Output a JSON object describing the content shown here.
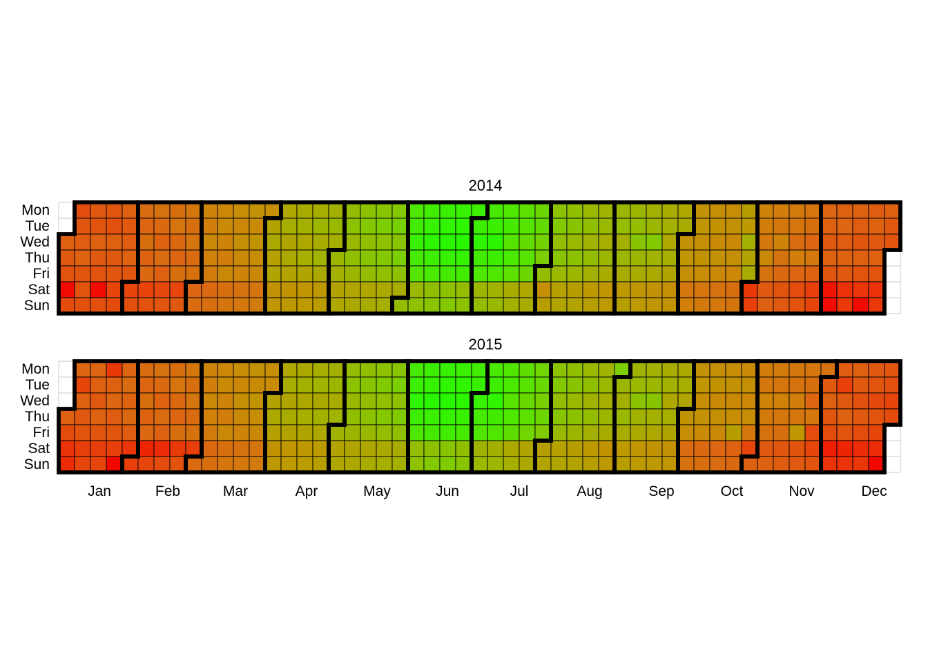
{
  "chart_data": {
    "type": "heatmap",
    "subtype": "calendar-heatmap",
    "legend": "none",
    "grid_on": true,
    "weekday_labels": [
      "Mon",
      "Tue",
      "Wed",
      "Thu",
      "Fri",
      "Sat",
      "Sun"
    ],
    "month_labels": [
      "Jan",
      "Feb",
      "Mar",
      "Apr",
      "May",
      "Jun",
      "Jul",
      "Aug",
      "Sep",
      "Oct",
      "Nov",
      "Dec"
    ],
    "text_color": "#000000",
    "grid_line_color": "#000000",
    "hairline_color": "#c8c8c8",
    "month_border_color": "#000000",
    "value_scale": {
      "min": 0,
      "max": 100,
      "low_color": "#F40000",
      "mid_color": "#BC9A00",
      "high_color": "#1FFA00",
      "stops": [
        [
          0,
          "#F40000"
        ],
        [
          10,
          "#EE2505"
        ],
        [
          20,
          "#E6460C"
        ],
        [
          30,
          "#DC6612"
        ],
        [
          40,
          "#CE8409"
        ],
        [
          50,
          "#BC9A00"
        ],
        [
          60,
          "#A4B000"
        ],
        [
          70,
          "#7CCE00"
        ],
        [
          80,
          "#54E400"
        ],
        [
          90,
          "#30F400"
        ],
        [
          100,
          "#1FFA00"
        ]
      ]
    },
    "years": [
      {
        "title": "2014",
        "first_weekday": "Wed",
        "months": [
          [
            28,
            26,
            24,
            3,
            22,
            22,
            25,
            27,
            29,
            25,
            24,
            23,
            26,
            24,
            28,
            26,
            24,
            3,
            23,
            25,
            23,
            28,
            26,
            25,
            20,
            22,
            28,
            26,
            27,
            29,
            25
          ],
          [
            20,
            23,
            32,
            30,
            33,
            29,
            31,
            19,
            24,
            34,
            31,
            29,
            32,
            28,
            21,
            25,
            33,
            35,
            31,
            30,
            33,
            20,
            26,
            36,
            33,
            35,
            32,
            34
          ],
          [
            30,
            32,
            40,
            38,
            42,
            39,
            37,
            31,
            33,
            41,
            43,
            40,
            38,
            42,
            33,
            35,
            44,
            41,
            45,
            42,
            40,
            34,
            36,
            46,
            43,
            47,
            44,
            42,
            35,
            37,
            45
          ],
          [
            54,
            57,
            53,
            55,
            46,
            48,
            56,
            59,
            55,
            57,
            54,
            47,
            49,
            58,
            60,
            56,
            59,
            55,
            48,
            50,
            59,
            62,
            58,
            61,
            57,
            49,
            51,
            60,
            63,
            59
          ],
          [
            62,
            60,
            54,
            56,
            64,
            66,
            63,
            65,
            62,
            55,
            57,
            66,
            68,
            65,
            67,
            64,
            56,
            58,
            67,
            70,
            66,
            68,
            65,
            57,
            59,
            68,
            71,
            67,
            70,
            66,
            58
          ],
          [
            64,
            82,
            85,
            88,
            84,
            80,
            63,
            66,
            85,
            88,
            92,
            86,
            83,
            65,
            67,
            87,
            90,
            94,
            88,
            84,
            66,
            68,
            88,
            91,
            95,
            89,
            85,
            64,
            66,
            86
          ],
          [
            86,
            90,
            85,
            82,
            62,
            64,
            84,
            87,
            92,
            86,
            82,
            61,
            63,
            82,
            84,
            80,
            83,
            78,
            58,
            60,
            78,
            80,
            76,
            79,
            74,
            56,
            58,
            74,
            76,
            72,
            70
          ],
          [
            64,
            45,
            52,
            66,
            68,
            64,
            67,
            63,
            53,
            55,
            65,
            67,
            63,
            66,
            62,
            52,
            54,
            63,
            65,
            61,
            64,
            60,
            50,
            52,
            61,
            63,
            59,
            62,
            58,
            48,
            50
          ],
          [
            62,
            64,
            60,
            62,
            58,
            50,
            52,
            62,
            64,
            67,
            62,
            58,
            48,
            50,
            60,
            62,
            68,
            61,
            57,
            46,
            48,
            58,
            60,
            56,
            59,
            55,
            45,
            47,
            56,
            58
          ],
          [
            46,
            48,
            45,
            36,
            38,
            46,
            48,
            45,
            47,
            44,
            35,
            37,
            45,
            47,
            43,
            46,
            42,
            34,
            36,
            44,
            46,
            42,
            45,
            41,
            33,
            35,
            52,
            50,
            60,
            54,
            58
          ],
          [
            16,
            18,
            40,
            38,
            36,
            42,
            34,
            26,
            28,
            38,
            36,
            40,
            34,
            31,
            24,
            26,
            37,
            35,
            32,
            38,
            30,
            22,
            24,
            35,
            33,
            30,
            36,
            28,
            18,
            20
          ],
          [
            30,
            28,
            26,
            29,
            25,
            5,
            3,
            28,
            30,
            27,
            29,
            26,
            14,
            16,
            29,
            27,
            25,
            28,
            24,
            15,
            3,
            27,
            29,
            26,
            28,
            24,
            14,
            16,
            28,
            26,
            24
          ]
        ]
      },
      {
        "title": "2015",
        "first_weekday": "Thu",
        "months": [
          [
            28,
            22,
            14,
            12,
            30,
            20,
            28,
            26,
            24,
            18,
            20,
            30,
            28,
            26,
            29,
            25,
            18,
            20,
            16,
            28,
            30,
            27,
            25,
            18,
            2,
            30,
            32,
            29,
            31,
            27,
            15
          ],
          [
            18,
            32,
            30,
            33,
            29,
            31,
            10,
            20,
            34,
            31,
            29,
            32,
            28,
            12,
            22,
            33,
            35,
            31,
            30,
            33,
            16,
            24,
            36,
            33,
            35,
            32,
            34,
            18
          ],
          [
            32,
            40,
            38,
            42,
            39,
            37,
            31,
            33,
            41,
            43,
            40,
            38,
            42,
            33,
            35,
            44,
            41,
            45,
            42,
            40,
            34,
            36,
            46,
            43,
            47,
            44,
            42,
            35,
            37,
            45,
            43
          ],
          [
            54,
            57,
            53,
            47,
            49,
            56,
            59,
            55,
            58,
            54,
            48,
            50,
            57,
            60,
            56,
            59,
            55,
            49,
            51,
            59,
            61,
            57,
            60,
            56,
            50,
            52,
            60,
            62,
            58,
            61
          ],
          [
            61,
            54,
            56,
            64,
            66,
            63,
            65,
            62,
            55,
            57,
            65,
            67,
            64,
            66,
            63,
            56,
            58,
            66,
            69,
            65,
            68,
            64,
            57,
            59,
            67,
            70,
            66,
            69,
            65,
            58,
            60
          ],
          [
            84,
            87,
            91,
            86,
            82,
            64,
            66,
            86,
            89,
            93,
            87,
            84,
            66,
            68,
            88,
            91,
            95,
            89,
            85,
            67,
            69,
            87,
            90,
            93,
            88,
            84,
            65,
            67,
            85,
            88
          ],
          [
            88,
            84,
            81,
            61,
            63,
            83,
            86,
            90,
            85,
            81,
            60,
            62,
            81,
            83,
            79,
            82,
            77,
            57,
            59,
            77,
            79,
            75,
            78,
            73,
            55,
            57,
            73,
            75,
            71,
            74,
            69
          ],
          [
            52,
            54,
            66,
            68,
            64,
            67,
            63,
            53,
            55,
            65,
            67,
            63,
            66,
            62,
            52,
            54,
            63,
            65,
            61,
            64,
            60,
            50,
            52,
            61,
            63,
            59,
            62,
            58,
            47,
            49,
            70
          ],
          [
            62,
            60,
            63,
            58,
            50,
            52,
            61,
            63,
            66,
            61,
            57,
            48,
            50,
            60,
            62,
            67,
            60,
            56,
            47,
            49,
            58,
            60,
            56,
            59,
            55,
            46,
            48,
            57,
            59,
            55
          ],
          [
            47,
            44,
            32,
            34,
            46,
            48,
            44,
            46,
            43,
            31,
            33,
            45,
            47,
            43,
            45,
            42,
            30,
            32,
            44,
            46,
            42,
            44,
            52,
            29,
            31,
            43,
            45,
            41,
            44,
            36,
            20
          ],
          [
            28,
            38,
            36,
            40,
            37,
            34,
            26,
            28,
            37,
            35,
            39,
            36,
            33,
            25,
            27,
            36,
            34,
            38,
            35,
            48,
            24,
            26,
            35,
            33,
            30,
            36,
            22,
            20,
            24,
            34
          ],
          [
            26,
            28,
            25,
            22,
            8,
            14,
            27,
            18,
            26,
            28,
            24,
            10,
            14,
            28,
            26,
            23,
            26,
            22,
            12,
            15,
            26,
            24,
            21,
            24,
            20,
            12,
            2,
            25,
            23,
            20,
            22
          ]
        ]
      }
    ]
  }
}
